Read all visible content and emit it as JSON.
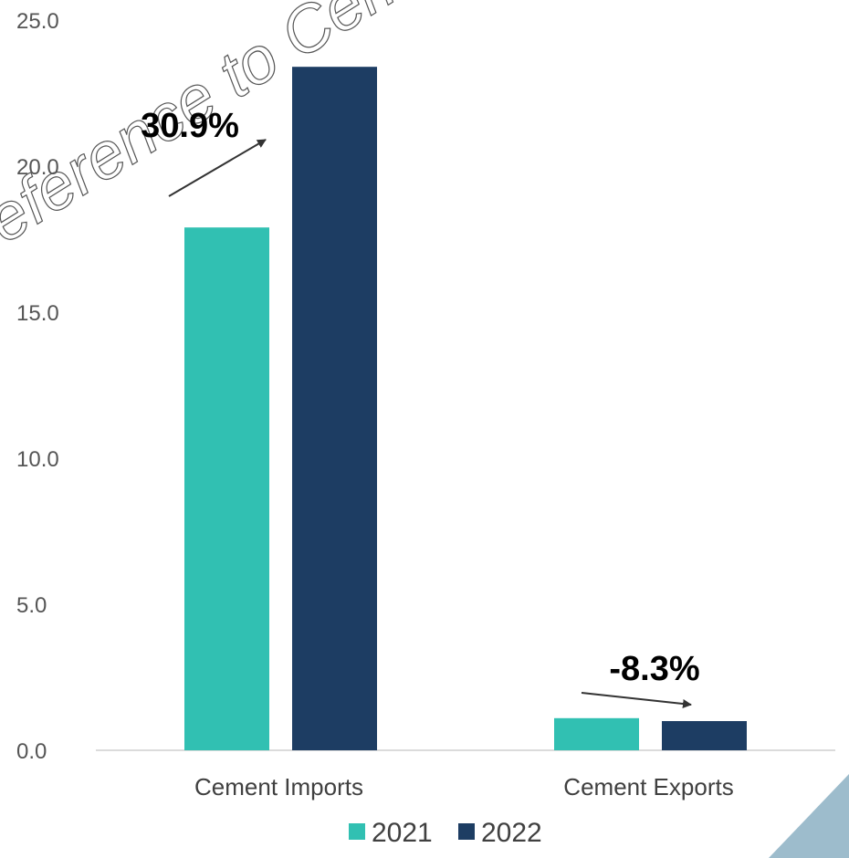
{
  "chart_data": {
    "type": "bar",
    "categories": [
      "Cement Imports",
      "Cement Exports"
    ],
    "series": [
      {
        "name": "2021",
        "values": [
          17.9,
          1.1
        ],
        "color": "#31c0b2"
      },
      {
        "name": "2022",
        "values": [
          23.4,
          1.0
        ],
        "color": "#1d3d63"
      }
    ],
    "ylim": [
      0,
      25
    ],
    "yticks": [
      "0.0",
      "5.0",
      "10.0",
      "15.0",
      "20.0",
      "25.0"
    ],
    "grid": false,
    "legend_position": "bottom",
    "annotations": [
      {
        "text": "30.9%",
        "category": "Cement Imports"
      },
      {
        "text": "-8.3%",
        "category": "Cement Exports"
      }
    ],
    "watermark": "eference to Cem",
    "corner_accent_color": "#9dbccc"
  }
}
